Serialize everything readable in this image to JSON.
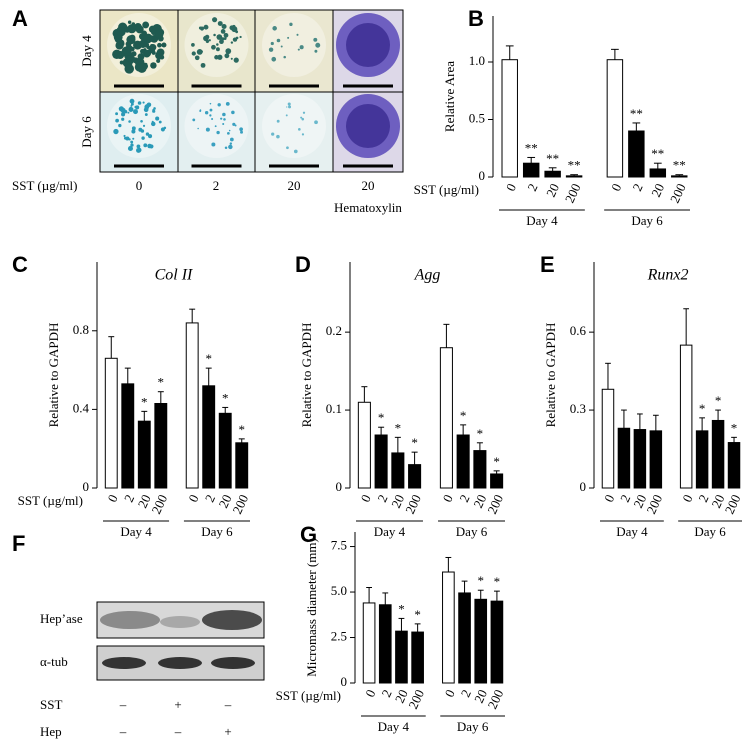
{
  "panel_a": {
    "label": "A",
    "rows": [
      "Day 4",
      "Day 6"
    ],
    "xlabel": "SST (µg/ml)",
    "columns": [
      "0",
      "2",
      "20",
      "20"
    ],
    "columns_note": "Hematoxylin"
  },
  "panel_f": {
    "label": "F",
    "bands": [
      "Hep’ase",
      "α-tub"
    ],
    "rows": [
      {
        "name": "SST",
        "signs": [
          "–",
          "+",
          "–"
        ]
      },
      {
        "name": "Hep",
        "signs": [
          "–",
          "–",
          "+"
        ]
      }
    ]
  },
  "chart_data": [
    {
      "type": "bar",
      "panel": "B",
      "ylabel": "Relative Area",
      "xlabel": "SST (µg/ml)",
      "categories": [
        "0",
        "2",
        "20",
        "200",
        "0",
        "2",
        "20",
        "200"
      ],
      "groups": [
        "Day 4",
        "Day 6"
      ],
      "values": [
        1.02,
        0.12,
        0.05,
        0.01,
        1.02,
        0.4,
        0.07,
        0.01
      ],
      "errors": [
        0.12,
        0.05,
        0.03,
        0.01,
        0.09,
        0.07,
        0.05,
        0.01
      ],
      "colors": [
        "#ffffff",
        "#000000",
        "#000000",
        "#000000",
        "#ffffff",
        "#000000",
        "#000000",
        "#000000"
      ],
      "annotations": [
        null,
        "**",
        "**",
        "**",
        null,
        "**",
        "**",
        "**"
      ],
      "ylim": [
        0,
        1.4
      ],
      "yticks": [
        0,
        0.5,
        {
          "value": 1,
          "label": "1.0"
        }
      ]
    },
    {
      "type": "bar",
      "panel": "C",
      "title": "Col II",
      "ylabel": "Relative to GAPDH",
      "xlabel": "SST (µg/ml)",
      "categories": [
        "0",
        "2",
        "20",
        "200",
        "0",
        "2",
        "20",
        "200"
      ],
      "groups": [
        "Day 4",
        "Day 6"
      ],
      "values": [
        0.66,
        0.53,
        0.34,
        0.43,
        0.84,
        0.52,
        0.38,
        0.23
      ],
      "errors": [
        0.11,
        0.08,
        0.05,
        0.06,
        0.07,
        0.09,
        0.03,
        0.02
      ],
      "colors": [
        "#ffffff",
        "#000000",
        "#000000",
        "#000000",
        "#ffffff",
        "#000000",
        "#000000",
        "#000000"
      ],
      "annotations": [
        null,
        null,
        "*",
        "*",
        null,
        "*",
        "*",
        "*"
      ],
      "ylim": [
        0,
        1.15
      ],
      "yticks": [
        0,
        0.4,
        0.8
      ]
    },
    {
      "type": "bar",
      "panel": "D",
      "title": "Agg",
      "ylabel": "Relative to GAPDH",
      "categories": [
        "0",
        "2",
        "20",
        "200",
        "0",
        "2",
        "20",
        "200"
      ],
      "groups": [
        "Day 4",
        "Day 6"
      ],
      "values": [
        0.11,
        0.068,
        0.045,
        0.03,
        0.18,
        0.068,
        0.048,
        0.018
      ],
      "errors": [
        0.02,
        0.01,
        0.02,
        0.016,
        0.03,
        0.013,
        0.01,
        0.004
      ],
      "colors": [
        "#ffffff",
        "#000000",
        "#000000",
        "#000000",
        "#ffffff",
        "#000000",
        "#000000",
        "#000000"
      ],
      "annotations": [
        null,
        "*",
        "*",
        "*",
        null,
        "*",
        "*",
        "*"
      ],
      "ylim": [
        0,
        0.29
      ],
      "yticks": [
        0,
        0.1,
        0.2
      ]
    },
    {
      "type": "bar",
      "panel": "E",
      "title": "Runx2",
      "ylabel": "Relative to GAPDH",
      "categories": [
        "0",
        "2",
        "20",
        "200",
        "0",
        "2",
        "20",
        "200"
      ],
      "groups": [
        "Day 4",
        "Day 6"
      ],
      "values": [
        0.38,
        0.23,
        0.225,
        0.22,
        0.55,
        0.22,
        0.26,
        0.175
      ],
      "errors": [
        0.1,
        0.07,
        0.06,
        0.06,
        0.14,
        0.05,
        0.04,
        0.02
      ],
      "colors": [
        "#ffffff",
        "#000000",
        "#000000",
        "#000000",
        "#ffffff",
        "#000000",
        "#000000",
        "#000000"
      ],
      "annotations": [
        null,
        null,
        null,
        null,
        null,
        "*",
        "*",
        "*"
      ],
      "ylim": [
        0,
        0.87
      ],
      "yticks": [
        0,
        0.3,
        0.6
      ]
    },
    {
      "type": "bar",
      "panel": "G",
      "ylabel": "Micromass diameter (mm)",
      "xlabel": "SST (µg/ml)",
      "categories": [
        "0",
        "2",
        "20",
        "200",
        "0",
        "2",
        "20",
        "200"
      ],
      "groups": [
        "Day 4",
        "Day 6"
      ],
      "values": [
        4.4,
        4.3,
        2.85,
        2.8,
        6.1,
        4.95,
        4.6,
        4.5
      ],
      "errors": [
        0.85,
        0.65,
        0.7,
        0.45,
        0.8,
        0.65,
        0.5,
        0.55
      ],
      "colors": [
        "#ffffff",
        "#000000",
        "#000000",
        "#000000",
        "#ffffff",
        "#000000",
        "#000000",
        "#000000"
      ],
      "annotations": [
        null,
        null,
        "*",
        "*",
        null,
        null,
        "*",
        "*"
      ],
      "ylim": [
        0,
        8.3
      ],
      "yticks": [
        0,
        2.5,
        {
          "value": 5,
          "label": "5.0"
        },
        7.5
      ]
    }
  ]
}
